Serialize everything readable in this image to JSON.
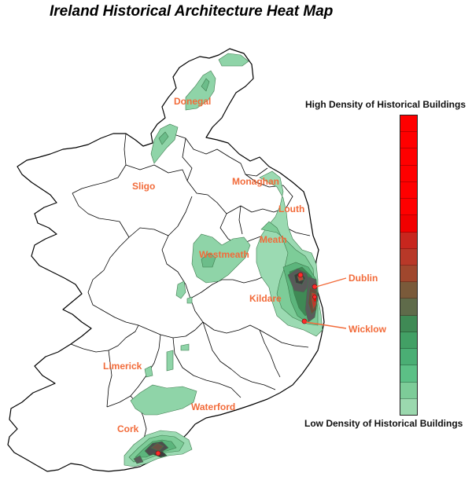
{
  "title": "Ireland Historical Architecture Heat Map",
  "legend": {
    "high_label": "High Density of Historical Buildings",
    "low_label": "Low Density of Historical Buildings",
    "colors": [
      "#ff0000",
      "#ff0000",
      "#ff0000",
      "#ff0000",
      "#ff0000",
      "#ff0000",
      "#f20000",
      "#c8261e",
      "#b83828",
      "#a0472d",
      "#7a5a3a",
      "#5f6b4a",
      "#3f8a55",
      "#42a065",
      "#4aae74",
      "#5cc086",
      "#7dcc98",
      "#9bd8ae"
    ]
  },
  "counties": [
    {
      "name": "Donegal"
    },
    {
      "name": "Sligo"
    },
    {
      "name": "Monaghan"
    },
    {
      "name": "Louth"
    },
    {
      "name": "Meath"
    },
    {
      "name": "Westmeath"
    },
    {
      "name": "Kildare"
    },
    {
      "name": "Limerick"
    },
    {
      "name": "Waterford"
    },
    {
      "name": "Cork"
    }
  ],
  "callouts": [
    {
      "name": "Dublin"
    },
    {
      "name": "Wicklow"
    }
  ]
}
